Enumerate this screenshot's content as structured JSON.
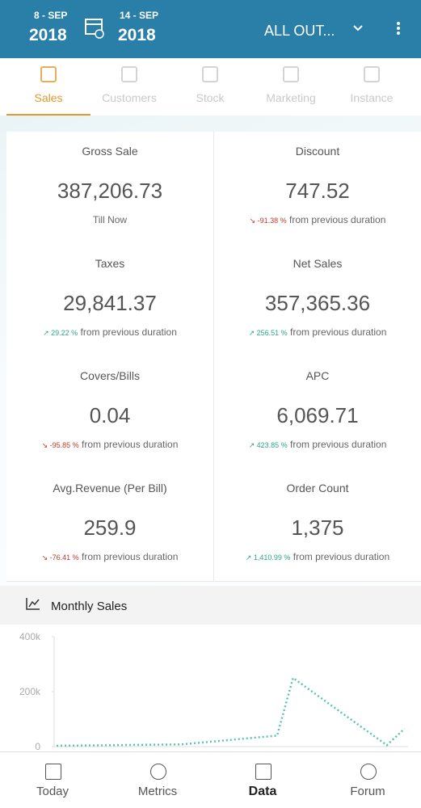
{
  "header": {
    "start_day": "8 - SEP",
    "start_year": "2018",
    "end_day": "14 - SEP",
    "end_year": "2018",
    "outlet": "ALL OUT..."
  },
  "tabs": [
    "Sales",
    "Customers",
    "Stock",
    "Marketing",
    "Instance"
  ],
  "metrics": [
    {
      "label": "Gross Sale",
      "value": "387,206.73",
      "note": "Till Now"
    },
    {
      "label": "Discount",
      "value": "747.52",
      "change": "-91.38 %",
      "note": "from previous duration",
      "trend": "down"
    },
    {
      "label": "Taxes",
      "value": "29,841.37",
      "change": "29.22 %",
      "note": "from previous duration",
      "trend": "up"
    },
    {
      "label": "Net Sales",
      "value": "357,365.36",
      "change": "256.51 %",
      "note": "from previous duration",
      "trend": "up"
    },
    {
      "label": "Covers/Bills",
      "value": "0.04",
      "change": "-95.85 %",
      "note": "from previous duration",
      "trend": "down"
    },
    {
      "label": "APC",
      "value": "6,069.71",
      "change": "423.85 %",
      "note": "from previous duration",
      "trend": "up"
    },
    {
      "label": "Avg.Revenue (Per Bill)",
      "value": "259.9",
      "change": "-76.41 %",
      "note": "from previous duration",
      "trend": "down"
    },
    {
      "label": "Order Count",
      "value": "1,375",
      "change": "1,410.99 %",
      "note": "from previous duration",
      "trend": "up"
    }
  ],
  "chart_data": {
    "type": "line",
    "title": "Monthly Sales",
    "categories": [
      null,
      null,
      null,
      null,
      null,
      null
    ],
    "series": [
      {
        "name": null,
        "color": "#5cc3b3",
        "values": [
          3000,
          8000,
          40000,
          250000,
          5000,
          65000
        ]
      }
    ],
    "ylim": [
      0,
      400000
    ],
    "yticks": [
      0,
      {
        "value": 200000,
        "label": "200k"
      },
      {
        "value": 400000,
        "label": "400k"
      }
    ]
  },
  "nav": [
    "Today",
    "Metrics",
    "Data",
    "Forum"
  ]
}
